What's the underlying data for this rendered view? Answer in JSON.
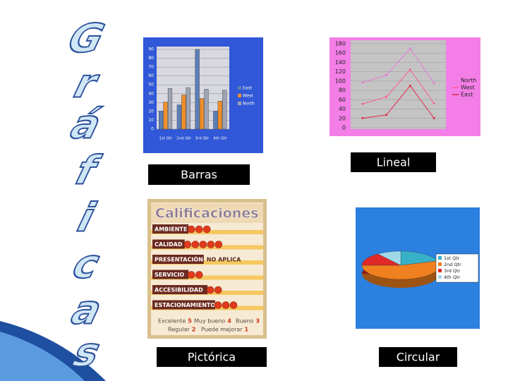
{
  "title_letters": [
    "G",
    "r",
    "á",
    "f",
    "i",
    "c",
    "a",
    "s"
  ],
  "captions": {
    "bar": "Barras",
    "line": "Lineal",
    "pictorial": "Pictórica",
    "pie": "Circular"
  },
  "chart_data": [
    {
      "type": "bar",
      "categories": [
        "1st Qtr",
        "2nd Qtr",
        "3rd Qtr",
        "4th Qtr"
      ],
      "ylim": [
        0,
        90
      ],
      "yticks": [
        0,
        10,
        20,
        30,
        40,
        50,
        60,
        70,
        80,
        90
      ],
      "grid": true,
      "series": [
        {
          "name": "East",
          "color": "#5a7fb8",
          "values": [
            20.4,
            27.4,
            90,
            20.4
          ]
        },
        {
          "name": "West",
          "color": "#f0902a",
          "values": [
            30.6,
            38.6,
            34.6,
            31.6
          ]
        },
        {
          "name": "North",
          "color": "#9ea4b4",
          "values": [
            45.9,
            46.9,
            45,
            43.9
          ]
        }
      ]
    },
    {
      "type": "line",
      "stacked": true,
      "categories": [
        null,
        null,
        null,
        null
      ],
      "ylim": [
        0,
        180
      ],
      "yticks": [
        0,
        20,
        40,
        60,
        80,
        100,
        120,
        140,
        160,
        180
      ],
      "grid": true,
      "series": [
        {
          "name": "North",
          "color": "#e878d8",
          "values": [
            45.9,
            46.9,
            45,
            43.9
          ]
        },
        {
          "name": "West",
          "color": "#ff5a9a",
          "values": [
            30.6,
            38.6,
            34.6,
            31.6
          ]
        },
        {
          "name": "East",
          "color": "#e02848",
          "values": [
            20.4,
            27.4,
            90,
            20.4
          ]
        }
      ]
    },
    {
      "type": "pie",
      "categories": [
        "1st Qtr",
        "2nd Qtr",
        "3rd Qtr",
        "4th Qtr"
      ],
      "values": [
        20,
        55,
        15,
        10
      ],
      "colors": [
        "#38b0c8",
        "#f08020",
        "#e02828",
        "#a0d8e8"
      ]
    }
  ],
  "pictorial": {
    "title": "Calificaciones",
    "rows": [
      {
        "label": "AMBIENTE",
        "value": 3
      },
      {
        "label": "CALIDAD",
        "value": 5
      },
      {
        "label": "PRESENTACIÓN",
        "note": "NO APLICA"
      },
      {
        "label": "SERVICIO",
        "value": 2
      },
      {
        "label": "ACCESIBILIDAD",
        "value": 2
      },
      {
        "label": "ESTACIONAMIENTO",
        "value": 3
      }
    ],
    "legend": [
      {
        "label": "Excelente",
        "value": 5
      },
      {
        "label": "Muy bueno",
        "value": 4
      },
      {
        "label": "Bueno",
        "value": 3
      },
      {
        "label": "Regular",
        "value": 2
      },
      {
        "label": "Puede mejorar",
        "value": 1
      }
    ]
  }
}
